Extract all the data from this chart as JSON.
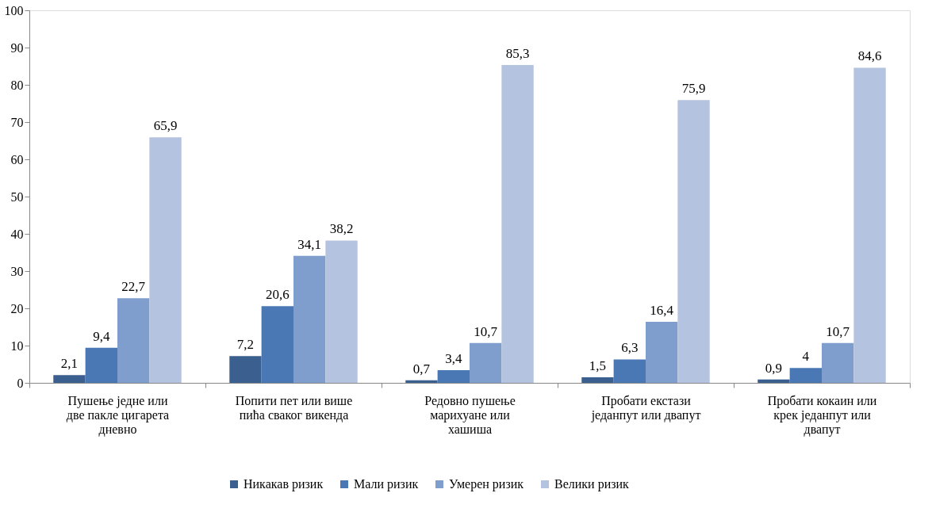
{
  "chart_data": {
    "type": "bar",
    "categories": [
      "Пушење једне или две пакле цигарета дневно",
      "Попити пет или више пића сваког викенда",
      "Редовно пушење марихуане или хашиша",
      "Пробати екстази једанпут или двапут",
      "Пробати кокаин или крек једанпут или двапут"
    ],
    "series": [
      {
        "name": "Никакав ризик",
        "color": "#3b5f8e",
        "values": [
          2.1,
          7.2,
          0.7,
          1.5,
          0.9
        ],
        "value_labels": [
          "2,1",
          "7,2",
          "0,7",
          "1,5",
          "0,9"
        ]
      },
      {
        "name": "Мали ризик",
        "color": "#4a78b4",
        "values": [
          9.4,
          20.6,
          3.4,
          6.3,
          4
        ],
        "value_labels": [
          "9,4",
          "20,6",
          "3,4",
          "6,3",
          "4"
        ]
      },
      {
        "name": "Умерен ризик",
        "color": "#7f9ecd",
        "values": [
          22.7,
          34.1,
          10.7,
          16.4,
          10.7
        ],
        "value_labels": [
          "22,7",
          "34,1",
          "10,7",
          "16,4",
          "10,7"
        ]
      },
      {
        "name": "Велики ризик",
        "color": "#b4c3df",
        "values": [
          65.9,
          38.2,
          85.3,
          75.9,
          84.6
        ],
        "value_labels": [
          "65,9",
          "38,2",
          "85,3",
          "75,9",
          "84,6"
        ]
      }
    ],
    "ylim": [
      0,
      100
    ],
    "yticks": [
      0,
      10,
      20,
      30,
      40,
      50,
      60,
      70,
      80,
      90,
      100
    ],
    "legend": "bottom",
    "grid": false
  }
}
